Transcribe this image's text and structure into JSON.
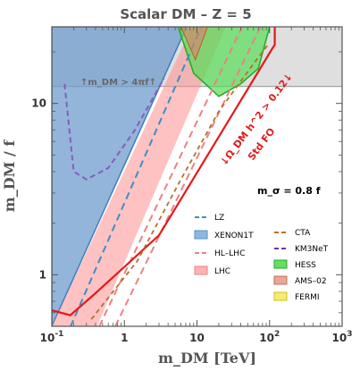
{
  "chart_data": {
    "type": "area",
    "title": "Scalar DM  –  Z = 5",
    "xlabel": "m_DM   [TeV]",
    "ylabel": "m_DM / f",
    "xscale": "log",
    "yscale": "log",
    "xlim": [
      0.1,
      1000
    ],
    "ylim": [
      0.5,
      28
    ],
    "x_ticks": [
      "10^-1",
      "1",
      "10",
      "10^2",
      "10^3"
    ],
    "y_ticks": [
      "1",
      "10"
    ],
    "grid": false,
    "annotations": {
      "perturbativity": "↑m_DM > 4πf↑",
      "relic": "↓Ω_DM h^2 > 0.12↓",
      "relic_sub": "Std FO",
      "msigma": "m_σ = 0.8 f"
    },
    "colors": {
      "LZ": "#3a8fc6",
      "XENON1T": "#5b9bd5",
      "HL-LHC": "#f08080",
      "LHC": "#ff9999",
      "CTA": "#b5702d",
      "KM3NeT": "#7030a0",
      "HESS": "#33cc33",
      "AMS-02": "#d9826a",
      "FERMI": "#f0e04a",
      "relic": "#e41a1c",
      "perturbativity": "#aaaaaa"
    },
    "legend": {
      "placement": "lower-right",
      "entries": [
        {
          "label": "LZ",
          "style": "dashed"
        },
        {
          "label": "XENON1T",
          "style": "filled"
        },
        {
          "label": "HL–LHC",
          "style": "dashed"
        },
        {
          "label": "LHC",
          "style": "filled"
        },
        {
          "label": "CTA",
          "style": "dashed"
        },
        {
          "label": "KM3NeT",
          "style": "dashed"
        },
        {
          "label": "HESS",
          "style": "filled"
        },
        {
          "label": "AMS–02",
          "style": "filled"
        },
        {
          "label": "FERMI",
          "style": "filled"
        }
      ]
    },
    "series": [
      {
        "name": "XENON1T",
        "kind": "region",
        "x": [
          0.1,
          0.1,
          7.2
        ],
        "y": [
          0.5,
          28,
          28
        ]
      },
      {
        "name": "LHC",
        "kind": "region",
        "x": [
          0.1,
          0.42,
          25,
          8.5
        ],
        "y": [
          0.5,
          0.5,
          28,
          28
        ]
      },
      {
        "name": "LZ",
        "kind": "line",
        "x": [
          0.1,
          11.5
        ],
        "y": [
          0.28,
          28
        ]
      },
      {
        "name": "HL-LHC",
        "kind": "line",
        "x": [
          0.45,
          42
        ],
        "y": [
          0.5,
          28
        ]
      },
      {
        "name": "HL-LHC",
        "kind": "line",
        "x": [
          0.75,
          75
        ],
        "y": [
          0.5,
          28
        ]
      },
      {
        "name": "relic",
        "kind": "line",
        "x": [
          0.1,
          0.18,
          0.4,
          3.0,
          110,
          118,
          118
        ],
        "y": [
          0.62,
          0.58,
          0.78,
          1.7,
          21,
          22,
          28
        ]
      },
      {
        "name": "CTA",
        "kind": "line",
        "x": [
          0.35,
          1.5,
          6,
          20,
          60,
          95
        ],
        "y": [
          0.55,
          1.2,
          3.6,
          9.0,
          17,
          22
        ]
      },
      {
        "name": "HESS",
        "kind": "region",
        "x": [
          5.5,
          9,
          20,
          40,
          70,
          100,
          60,
          30,
          15
        ],
        "y": [
          28,
          15,
          11,
          13,
          16,
          28,
          28,
          28,
          28
        ]
      },
      {
        "name": "KM3NeT",
        "kind": "line",
        "x": [
          0.15,
          0.2,
          0.3,
          0.6,
          1.4,
          3.5
        ],
        "y": [
          13,
          4.0,
          3.6,
          4.2,
          7.0,
          14
        ]
      }
    ]
  }
}
